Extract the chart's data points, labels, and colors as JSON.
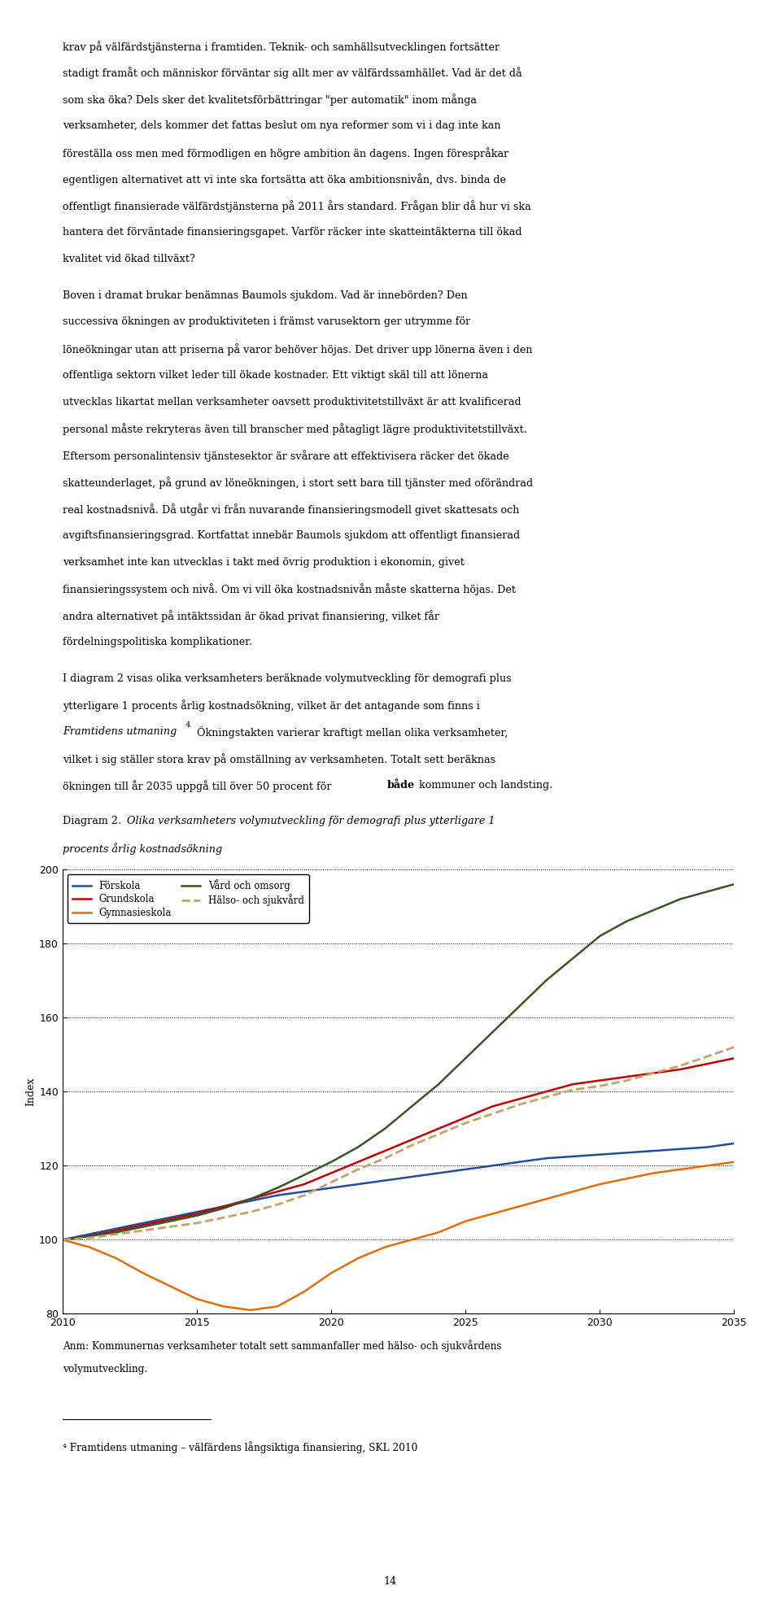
{
  "page_text_top": [
    "krav på välfärdstjänsterna i framtiden. Teknik- och samhällsutvecklingen fortsätter",
    "stadigt framåt och människor förväntar sig allt mer av välfärdssamhället. Vad är det då",
    "som ska öka? Dels sker det kvalitetsförbättringar \"per automatik\" inom många",
    "verksamheter, dels kommer det fattas beslut om nya reformer som vi i dag inte kan",
    "föreställa oss men med förmodligen en högre ambition än dagens. Ingen förespråkar",
    "egentligen alternativet att vi inte ska fortsätta att öka ambitionsnivån, dvs. binda de",
    "offentligt finansierade välfärdstjänsterna på 2011 års standard. Frågan blir då hur vi ska",
    "hantera det förväntade finansieringsgapet. Varför räcker inte skatteintäkterna till ökad",
    "kvalitet vid ökad tillväxt?"
  ],
  "page_text_mid": [
    "Boven i dramat brukar benämnas Baumols sjukdom. Vad är innebörden? Den",
    "successiva ökningen av produktiviteten i främst varusektorn ger utrymme för",
    "löneökningar utan att priserna på varor behöver höjas. Det driver upp lönerna även i den",
    "offentliga sektorn vilket leder till ökade kostnader. Ett viktigt skäl till att lönerna",
    "utvecklas likartat mellan verksamheter oavsett produktivitetstillväxt är att kvalificerad",
    "personal måste rekryteras även till branscher med påtagligt lägre produktivitetstillväxt.",
    "Eftersom personalintensiv tjänstesektor är svårare att effektivisera räcker det ökade",
    "skatteunderlaget, på grund av löneökningen, i stort sett bara till tjänster med oförändrad",
    "real kostnadsnivå. Då utgår vi från nuvarande finansieringsmodell givet skattesats och",
    "avgiftsfinansieringsgrad. Kortfattat innebär Baumols sjukdom att offentligt finansierad",
    "verksamhet inte kan utvecklas i takt med övrig produktion i ekonomin, givet",
    "finansieringssystem och nivå. Om vi vill öka kostnadsnivån måste skatterna höjas. Det",
    "andra alternativet på intäktssidan är ökad privat finansiering, vilket får",
    "fördelningspolitiska komplikationer."
  ],
  "ylabel": "Index",
  "ylim": [
    80,
    200
  ],
  "xlim": [
    2010,
    2035
  ],
  "yticks": [
    80,
    100,
    120,
    140,
    160,
    180,
    200
  ],
  "xticks": [
    2010,
    2015,
    2020,
    2025,
    2030,
    2035
  ],
  "legend_entries": [
    {
      "label": "Förskola",
      "color": "#1f4e9a",
      "linestyle": "solid"
    },
    {
      "label": "Grundskola",
      "color": "#c00000",
      "linestyle": "solid"
    },
    {
      "label": "Gymnasieskola",
      "color": "#e36c09",
      "linestyle": "solid"
    },
    {
      "label": "Vård och omsorg",
      "color": "#375623",
      "linestyle": "solid"
    },
    {
      "label": "Hälso- och sjukvård",
      "color": "#c6a265",
      "linestyle": "dashed"
    }
  ],
  "series": {
    "Förskola": {
      "color": "#1f4e9a",
      "linestyle": "solid",
      "x": [
        2010,
        2011,
        2012,
        2013,
        2014,
        2015,
        2016,
        2017,
        2018,
        2019,
        2020,
        2021,
        2022,
        2023,
        2024,
        2025,
        2026,
        2027,
        2028,
        2029,
        2030,
        2031,
        2032,
        2033,
        2034,
        2035
      ],
      "y": [
        100,
        101.5,
        103,
        104.5,
        106,
        107.5,
        109,
        110.5,
        112,
        113,
        114,
        115,
        116,
        117,
        118,
        119,
        120,
        121,
        122,
        122.5,
        123,
        123.5,
        124,
        124.5,
        125,
        126
      ]
    },
    "Grundskola": {
      "color": "#c00000",
      "linestyle": "solid",
      "x": [
        2010,
        2011,
        2012,
        2013,
        2014,
        2015,
        2016,
        2017,
        2018,
        2019,
        2020,
        2021,
        2022,
        2023,
        2024,
        2025,
        2026,
        2027,
        2028,
        2029,
        2030,
        2031,
        2032,
        2033,
        2034,
        2035
      ],
      "y": [
        100,
        101,
        102.5,
        104,
        105.5,
        107,
        109,
        111,
        113,
        115,
        118,
        121,
        124,
        127,
        130,
        133,
        136,
        138,
        140,
        142,
        143,
        144,
        145,
        146,
        147.5,
        149
      ]
    },
    "Gymnasieskola": {
      "color": "#e36c09",
      "linestyle": "solid",
      "x": [
        2010,
        2011,
        2012,
        2013,
        2014,
        2015,
        2016,
        2017,
        2018,
        2019,
        2020,
        2021,
        2022,
        2023,
        2024,
        2025,
        2026,
        2027,
        2028,
        2029,
        2030,
        2031,
        2032,
        2033,
        2034,
        2035
      ],
      "y": [
        100,
        98,
        95,
        91,
        87.5,
        84,
        82,
        81,
        82,
        86,
        91,
        95,
        98,
        100,
        102,
        105,
        107,
        109,
        111,
        113,
        115,
        116.5,
        118,
        119,
        120,
        121
      ]
    },
    "Vård och omsorg": {
      "color": "#375623",
      "linestyle": "solid",
      "x": [
        2010,
        2011,
        2012,
        2013,
        2014,
        2015,
        2016,
        2017,
        2018,
        2019,
        2020,
        2021,
        2022,
        2023,
        2024,
        2025,
        2026,
        2027,
        2028,
        2029,
        2030,
        2031,
        2032,
        2033,
        2034,
        2035
      ],
      "y": [
        100,
        101,
        102,
        103.5,
        105,
        106.5,
        108.5,
        111,
        114,
        117.5,
        121,
        125,
        130,
        136,
        142,
        149,
        156,
        163,
        170,
        176,
        182,
        186,
        189,
        192,
        194,
        196
      ]
    },
    "Hälso- och sjukvård": {
      "color": "#c6a265",
      "linestyle": "dashed",
      "x": [
        2010,
        2011,
        2012,
        2013,
        2014,
        2015,
        2016,
        2017,
        2018,
        2019,
        2020,
        2021,
        2022,
        2023,
        2024,
        2025,
        2026,
        2027,
        2028,
        2029,
        2030,
        2031,
        2032,
        2033,
        2034,
        2035
      ],
      "y": [
        100,
        100.5,
        101.5,
        102.5,
        103.5,
        104.5,
        106,
        107.5,
        109.5,
        112,
        115.5,
        119,
        122,
        125.5,
        128.5,
        131.5,
        134,
        136.5,
        138.5,
        140.5,
        141.5,
        143,
        145,
        147,
        149.5,
        152
      ]
    }
  },
  "background_color": "#ffffff"
}
